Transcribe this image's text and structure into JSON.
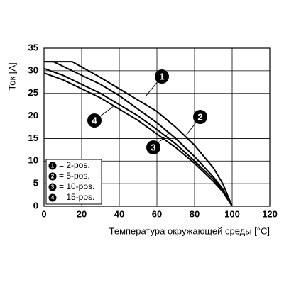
{
  "chart_data": {
    "type": "line",
    "xlabel": "Температура окружающей среды [°C]",
    "ylabel": "Ток [A]",
    "xlim": [
      0,
      120
    ],
    "xticks": [
      0,
      20,
      40,
      60,
      80,
      100,
      120
    ],
    "ylim": [
      0,
      35
    ],
    "yticks": [
      0,
      5,
      10,
      15,
      20,
      25,
      30,
      35
    ],
    "grid": true,
    "legend": "lower left",
    "series": [
      {
        "name": "= 2-pos.",
        "label": "1",
        "color": "#000000",
        "x": [
          0,
          15,
          30,
          40,
          50,
          60,
          70,
          80,
          90,
          95,
          100
        ],
        "values": [
          32,
          32,
          28.5,
          26,
          23.5,
          21,
          17.5,
          13.5,
          8.5,
          5,
          0
        ]
      },
      {
        "name": "= 5-pos.",
        "label": "2",
        "color": "#000000",
        "x": [
          0,
          5,
          20,
          30,
          40,
          50,
          60,
          70,
          80,
          90,
          95,
          100
        ],
        "values": [
          32,
          32,
          29,
          27,
          24.5,
          21.5,
          18.5,
          15,
          11,
          6.5,
          3.8,
          0
        ]
      },
      {
        "name": "= 10-pos.",
        "label": "3",
        "color": "#000000",
        "x": [
          0,
          10,
          20,
          30,
          40,
          50,
          60,
          70,
          80,
          90,
          95,
          100
        ],
        "values": [
          30.5,
          29,
          27,
          25,
          22.5,
          20,
          17,
          13.8,
          10,
          6,
          3.5,
          0
        ]
      },
      {
        "name": "= 15-pos.",
        "label": "4",
        "color": "#000000",
        "x": [
          0,
          10,
          20,
          30,
          40,
          50,
          60,
          70,
          80,
          90,
          95,
          100
        ],
        "values": [
          29.5,
          28,
          26,
          24,
          21.5,
          19,
          16,
          13,
          9.5,
          5.5,
          3.2,
          0
        ]
      }
    ]
  }
}
